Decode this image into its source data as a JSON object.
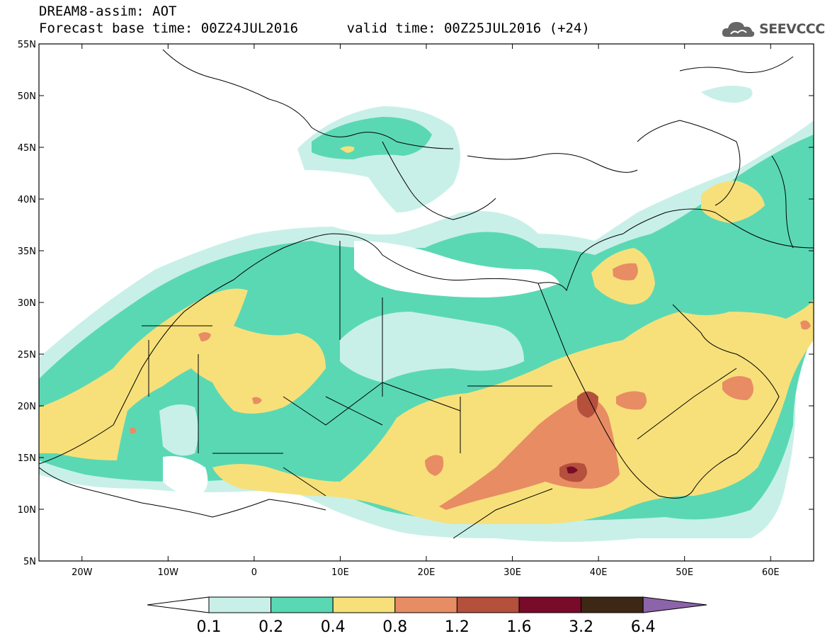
{
  "title": {
    "line1": "DREAM8-assim: AOT",
    "line2": "Forecast base time: 00Z24JUL2016      valid time: 00Z25JUL2016 (+24)"
  },
  "logo": {
    "text": "SEEVCCC",
    "icon": "cloud-icon"
  },
  "map": {
    "lat_labels": [
      "55N",
      "50N",
      "45N",
      "40N",
      "35N",
      "30N",
      "25N",
      "20N",
      "15N",
      "10N",
      "5N"
    ],
    "lon_labels": [
      "20W",
      "10W",
      "0",
      "10E",
      "20E",
      "30E",
      "40E",
      "50E",
      "60E"
    ],
    "lat_range": [
      5,
      55
    ],
    "lon_range": [
      -25,
      65
    ]
  },
  "colorbar": {
    "labels": [
      "0.1",
      "0.2",
      "0.4",
      "0.8",
      "1.2",
      "1.6",
      "3.2",
      "6.4"
    ],
    "colors": [
      "#ffffff",
      "#c8f0e8",
      "#5ad8b4",
      "#f7e07a",
      "#e88c64",
      "#b4503c",
      "#780a2a",
      "#3c2814",
      "#8c64aa"
    ]
  },
  "colors": {
    "c01": "#c8f0e8",
    "c02": "#5ad8b4",
    "c04": "#f7e07a",
    "c08": "#e88c64",
    "c12": "#b4503c",
    "c16": "#780a2a"
  }
}
